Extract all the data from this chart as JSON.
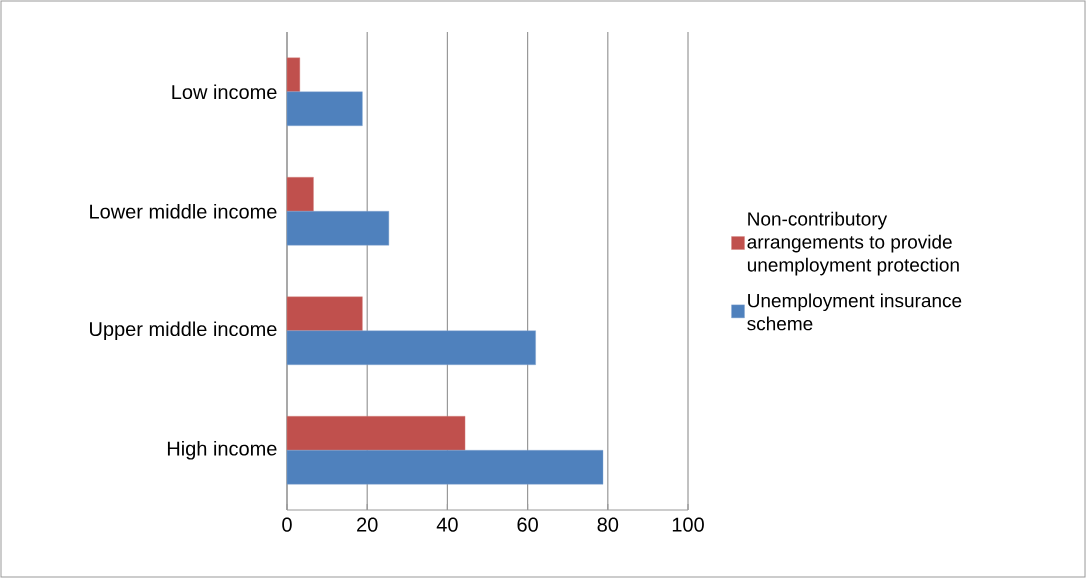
{
  "chart_data": {
    "type": "bar",
    "orientation": "horizontal",
    "categories": [
      "Low income",
      "Lower middle income",
      "Upper middle income",
      "High income"
    ],
    "series": [
      {
        "name": "Non-contributory arrangements to provide unemployment protection",
        "color": "#c0504d",
        "values": [
          3.2,
          6.6,
          18.8,
          44.4
        ]
      },
      {
        "name": "Unemployment insurance scheme",
        "color": "#4f81bd",
        "values": [
          18.8,
          25.4,
          62.0,
          78.8
        ]
      }
    ],
    "xlim": [
      0,
      100
    ],
    "xticks": [
      0,
      20,
      40,
      60,
      80,
      100
    ],
    "grid": "x",
    "legend": "right"
  }
}
